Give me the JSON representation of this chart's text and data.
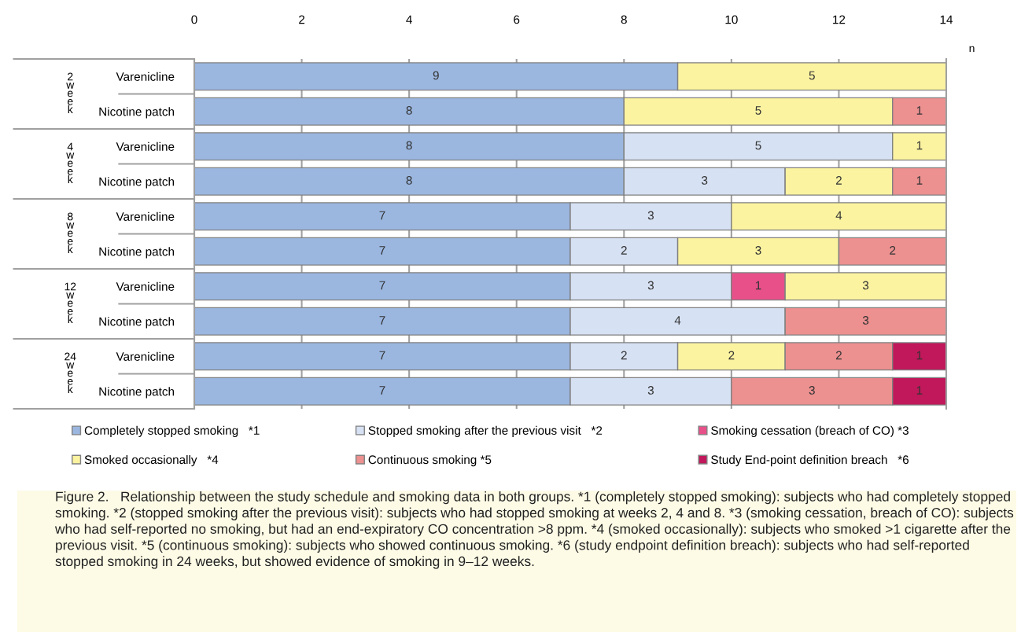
{
  "chart_data": {
    "type": "bar",
    "orientation": "horizontal",
    "stacked": true,
    "categories": [
      "Varenicline",
      "Nicotine patch",
      "Varenicline",
      "Nicotine patch",
      "Varenicline",
      "Nicotine patch",
      "Varenicline",
      "Nicotine patch",
      "Varenicline",
      "Nicotine patch"
    ],
    "series": [
      {
        "name": "Completely stopped smoking   *1",
        "color": "#9bb7e0",
        "values": [
          9,
          8,
          8,
          8,
          7,
          7,
          7,
          7,
          7,
          7
        ]
      },
      {
        "name": "Stopped smoking after the previous visit   *2",
        "color": "#d6e1f3",
        "values": [
          null,
          null,
          5,
          3,
          3,
          2,
          3,
          4,
          2,
          3
        ]
      },
      {
        "name": "Smoking cessation (breach of CO) *3",
        "color": "#e8508a",
        "values": [
          null,
          null,
          null,
          null,
          null,
          null,
          1,
          null,
          null,
          null
        ]
      },
      {
        "name": "Smoked occasionally   *4",
        "color": "#fbf3a0",
        "values": [
          5,
          5,
          1,
          2,
          4,
          3,
          3,
          null,
          2,
          null
        ]
      },
      {
        "name": "Continuous smoking *5",
        "color": "#ec9090",
        "values": [
          null,
          1,
          null,
          1,
          null,
          2,
          null,
          3,
          2,
          3
        ]
      },
      {
        "name": "Study End-point definition breach   *6",
        "color": "#c0185a",
        "values": [
          null,
          null,
          null,
          null,
          null,
          null,
          null,
          null,
          1,
          1
        ]
      }
    ],
    "xlim": [
      0,
      14
    ],
    "xticks": [
      0,
      2,
      4,
      6,
      8,
      10,
      12,
      14
    ],
    "xlabel": "n",
    "grid": "x",
    "legend": "bottom",
    "data_labels": true,
    "annotations": [
      "2 week",
      "4 week",
      "8 week",
      "12 week",
      "24 week",
      "Figure 2.   Relationship between the study schedule and smoking data in both groups. *1 (completely stopped smoking): subjects who had completely stopped smoking. *2 (stopped smoking after the previous visit): subjects who had stopped smoking at weeks 2, 4 and 8. *3 (smoking cessation, breach of CO): subjects who had self-reported no smoking, but had an end-expiratory CO concentration >8 ppm. *4 (smoked occasionally): subjects who smoked >1 cigarette after the previous visit. *5 (continuous smoking): subjects who showed continuous smoking. *6 (study endpoint definition breach): subjects who had self-reported stopped smoking in 24 weeks, but showed evidence of smoking in 9–12 weeks."
    ]
  }
}
